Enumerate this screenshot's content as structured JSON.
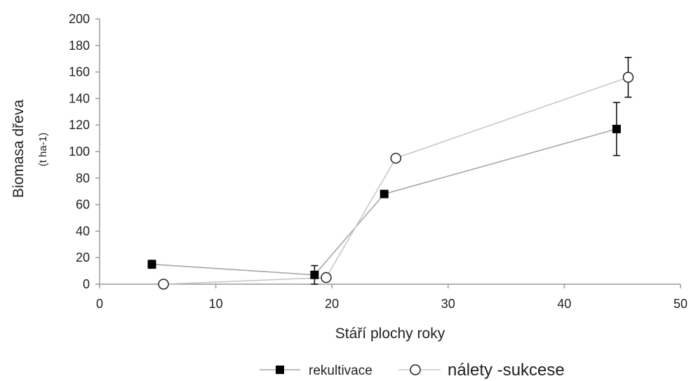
{
  "chart_data": {
    "type": "line",
    "title": "",
    "xlabel": "Stáří plochy roky",
    "ylabel": "Biomasa dřeva",
    "ylabel_unit": "(t ha-1)",
    "xlim": [
      0,
      50
    ],
    "ylim": [
      0,
      200
    ],
    "x_ticks": [
      "0",
      "10",
      "20",
      "30",
      "40",
      "50"
    ],
    "y_ticks": [
      "0",
      "20",
      "40",
      "60",
      "80",
      "100",
      "120",
      "140",
      "160",
      "180",
      "200"
    ],
    "grid": false,
    "legend_position": "bottom",
    "series": [
      {
        "name": "rekultivace",
        "marker": "filled-square",
        "color": "#000000",
        "line_color": "#a6a6a6",
        "points": [
          {
            "x": 4.5,
            "y": 15,
            "err": 3
          },
          {
            "x": 18.5,
            "y": 7,
            "err": 7
          },
          {
            "x": 24.5,
            "y": 68,
            "err": 0
          },
          {
            "x": 44.5,
            "y": 117,
            "err": 20
          }
        ]
      },
      {
        "name": "nálety -sukcese",
        "marker": "open-circle",
        "color": "#000000",
        "line_color": "#c8c8c8",
        "points": [
          {
            "x": 5.5,
            "y": 0,
            "err": 0
          },
          {
            "x": 19.5,
            "y": 5,
            "err": 0
          },
          {
            "x": 25.5,
            "y": 95,
            "err": 0
          },
          {
            "x": 45.5,
            "y": 156,
            "err": 15
          }
        ]
      }
    ]
  }
}
